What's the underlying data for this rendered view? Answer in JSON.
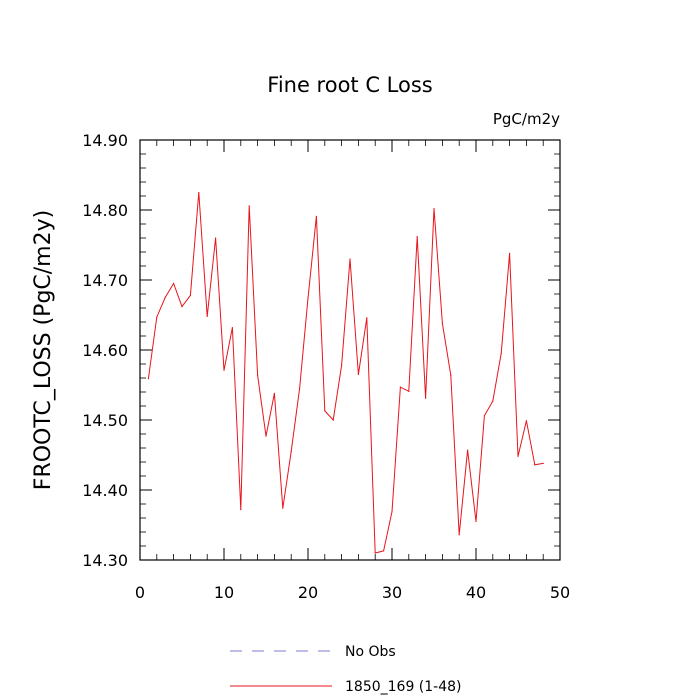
{
  "chart_data": {
    "type": "line",
    "title": "Fine root C Loss",
    "units_label": "PgC/m2y",
    "xlabel": "",
    "ylabel": "FROOTC_LOSS  (PgC/m2y)",
    "xlim": [
      0,
      50
    ],
    "ylim": [
      14.3,
      14.9
    ],
    "x_ticks": [
      0,
      10,
      20,
      30,
      40,
      50
    ],
    "x_tick_labels": [
      "0",
      "10",
      "20",
      "30",
      "40",
      "50"
    ],
    "y_ticks": [
      14.3,
      14.4,
      14.5,
      14.6,
      14.7,
      14.8,
      14.9
    ],
    "y_tick_labels": [
      "14.30",
      "14.40",
      "14.50",
      "14.60",
      "14.70",
      "14.80",
      "14.90"
    ],
    "grid": false,
    "legend_position": "bottom",
    "series": [
      {
        "name": "1850_169 (1-48)",
        "color": "#e8141b",
        "x": [
          1,
          2,
          3,
          4,
          5,
          6,
          7,
          8,
          9,
          10,
          11,
          12,
          13,
          14,
          15,
          16,
          17,
          18,
          19,
          20,
          21,
          22,
          23,
          24,
          25,
          26,
          27,
          28,
          29,
          30,
          31,
          32,
          33,
          34,
          35,
          36,
          37,
          38,
          39,
          40,
          41,
          42,
          43,
          44,
          45,
          46,
          47,
          48
        ],
        "values": [
          14.559,
          14.647,
          14.675,
          14.695,
          14.662,
          14.678,
          14.825,
          14.648,
          14.76,
          14.571,
          14.632,
          14.372,
          14.806,
          14.564,
          14.477,
          14.538,
          14.374,
          14.455,
          14.545,
          14.674,
          14.791,
          14.513,
          14.5,
          14.578,
          14.73,
          14.565,
          14.646,
          14.31,
          14.313,
          14.369,
          14.547,
          14.541,
          14.762,
          14.531,
          14.802,
          14.638,
          14.564,
          14.336,
          14.457,
          14.355,
          14.506,
          14.527,
          14.595,
          14.738,
          14.448,
          14.499,
          14.436,
          14.438
        ]
      }
    ],
    "legend": [
      {
        "name": "No Obs",
        "color": "#7b7bd6",
        "style": "dashed"
      },
      {
        "name": "1850_169 (1-48)",
        "color": "#e8141b",
        "style": "solid"
      }
    ]
  }
}
